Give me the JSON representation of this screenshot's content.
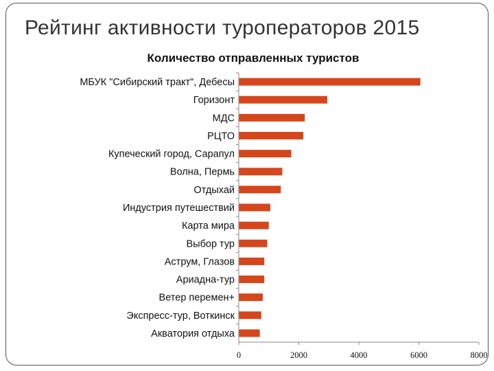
{
  "slide": {
    "title": "Рейтинг активности туроператоров 2015"
  },
  "chart_data": {
    "type": "bar",
    "orientation": "horizontal",
    "title": "Количество отправленных туристов",
    "categories": [
      "МБУК \"Сибирский тракт\", Дебесы",
      "Горизонт",
      "МДС",
      "РЦТО",
      "Купеческий город, Сарапул",
      "Волна, Пермь",
      "Отдыхай",
      "Индустрия путешествий",
      "Карта мира",
      "Выбор тур",
      "Аструм, Глазов",
      "Ариадна-тур",
      "Ветер перемен+",
      "Экспресс-тур, Воткинск",
      "Акватория отдыха"
    ],
    "values": [
      6050,
      2950,
      2200,
      2150,
      1750,
      1450,
      1400,
      1050,
      1000,
      950,
      850,
      850,
      800,
      750,
      700
    ],
    "xlim": [
      0,
      8000
    ],
    "xticks": [
      "0",
      "2000",
      "4000",
      "6000",
      "8000"
    ],
    "grid": false,
    "legend": false,
    "bar_color": "#d6461c"
  }
}
